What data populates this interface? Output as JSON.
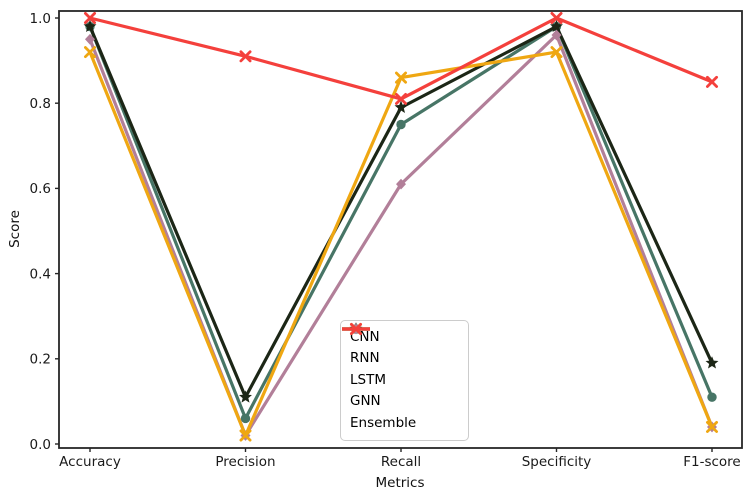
{
  "figure": {
    "background": "#ffffff",
    "axis_color": "#262626",
    "tick_label_color": "#1a1a1a"
  },
  "chart_data": {
    "type": "line",
    "title": "",
    "xlabel": "Metrics",
    "ylabel": "Score",
    "categories": [
      "Accuracy",
      "Precision",
      "Recall",
      "Specificity",
      "F1-score"
    ],
    "yticks": [
      0.0,
      0.2,
      0.4,
      0.6,
      0.8,
      1.0
    ],
    "ylim": [
      -0.01,
      1.02
    ],
    "grid": false,
    "legend_position": "lower-center-inside",
    "series": [
      {
        "name": "CNN",
        "color": "#477566",
        "marker": "circle",
        "values": [
          0.98,
          0.06,
          0.75,
          0.98,
          0.11
        ]
      },
      {
        "name": "RNN",
        "color": "#1c2616",
        "marker": "star",
        "values": [
          0.98,
          0.11,
          0.79,
          0.98,
          0.19
        ]
      },
      {
        "name": "LSTM",
        "color": "#b27f99",
        "marker": "diamond",
        "values": [
          0.95,
          0.02,
          0.61,
          0.96,
          0.04
        ]
      },
      {
        "name": "GNN",
        "color": "#efa712",
        "marker": "x",
        "values": [
          0.92,
          0.02,
          0.86,
          0.92,
          0.04
        ]
      },
      {
        "name": "Ensemble",
        "color": "#f4403c",
        "marker": "x",
        "values": [
          1.0,
          0.91,
          0.81,
          1.0,
          0.85
        ]
      }
    ]
  }
}
